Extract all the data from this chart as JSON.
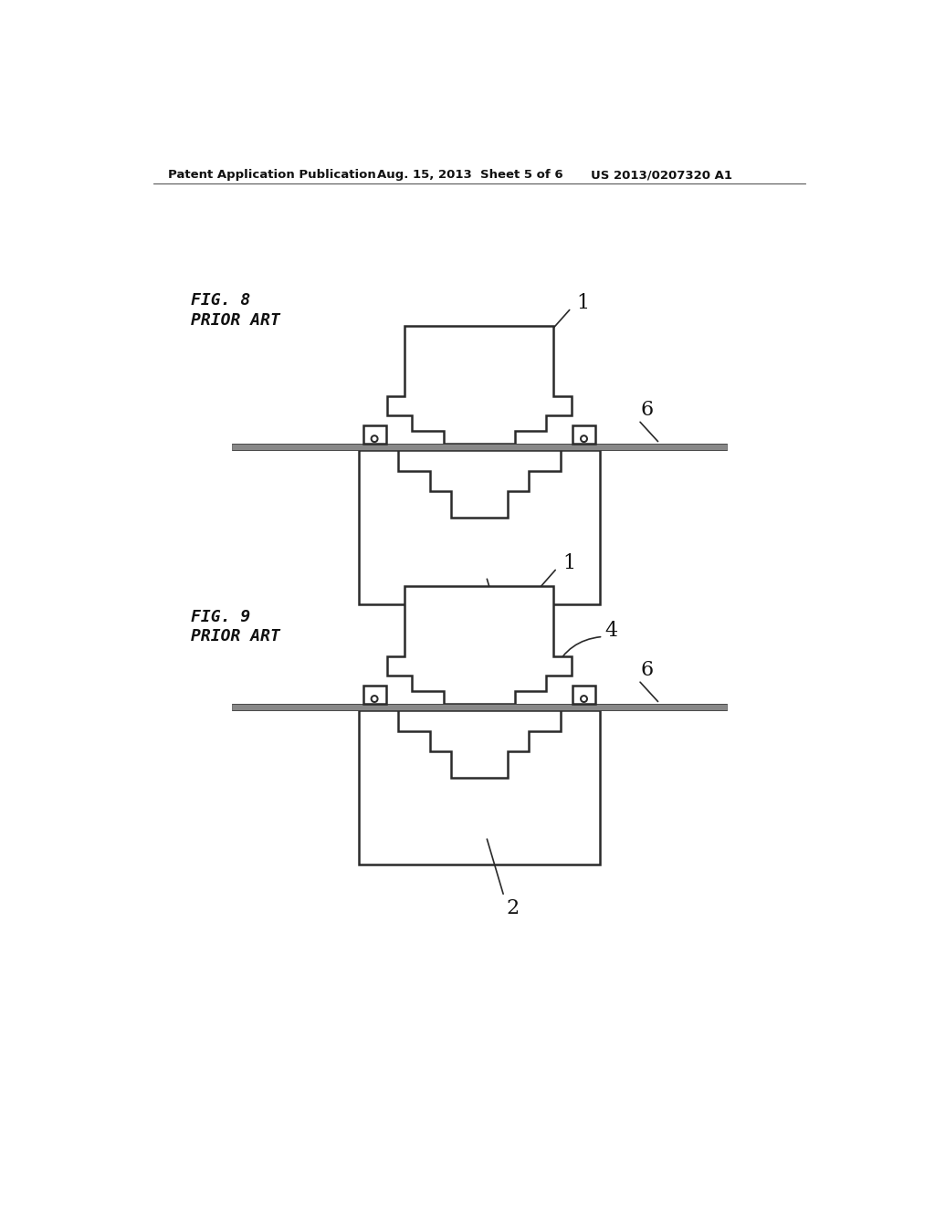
{
  "title_left": "Patent Application Publication",
  "title_mid": "Aug. 15, 2013  Sheet 5 of 6",
  "title_right": "US 2013/0207320 A1",
  "fig8_label": "FIG. 8",
  "fig8_sub": "PRIOR ART",
  "fig9_label": "FIG. 9",
  "fig9_sub": "PRIOR ART",
  "label1": "1",
  "label2": "2",
  "label4": "4",
  "label6": "6",
  "bg_color": "#ffffff",
  "line_color": "#2a2a2a"
}
